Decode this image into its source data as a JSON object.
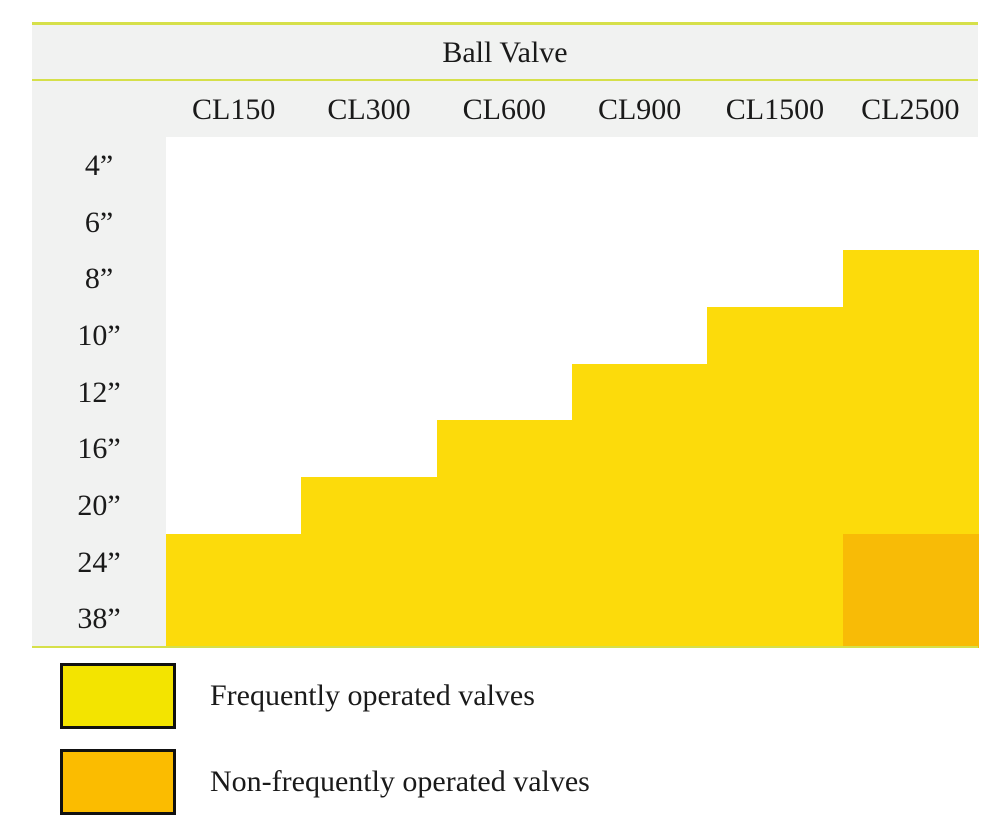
{
  "chart_data": {
    "type": "table",
    "title": "Ball Valve",
    "columns": [
      "CL150",
      "CL300",
      "CL600",
      "CL900",
      "CL1500",
      "CL2500"
    ],
    "rows": [
      "4”",
      "6”",
      "8”",
      "10”",
      "12”",
      "16”",
      "20”",
      "24”",
      "38”"
    ],
    "cells": [
      [
        "none",
        "none",
        "none",
        "none",
        "none",
        "none"
      ],
      [
        "none",
        "none",
        "none",
        "none",
        "none",
        "none"
      ],
      [
        "none",
        "none",
        "none",
        "none",
        "none",
        "frequent"
      ],
      [
        "none",
        "none",
        "none",
        "none",
        "frequent",
        "frequent"
      ],
      [
        "none",
        "none",
        "none",
        "frequent",
        "frequent",
        "frequent"
      ],
      [
        "none",
        "none",
        "frequent",
        "frequent",
        "frequent",
        "frequent"
      ],
      [
        "none",
        "frequent",
        "frequent",
        "frequent",
        "frequent",
        "frequent"
      ],
      [
        "frequent",
        "frequent",
        "frequent",
        "frequent",
        "frequent",
        "non-frequent"
      ],
      [
        "frequent",
        "frequent",
        "frequent",
        "frequent",
        "frequent",
        "non-frequent"
      ]
    ],
    "legend": [
      {
        "key": "frequent",
        "label": "Frequently operated valves"
      },
      {
        "key": "non-frequent",
        "label": "Non-frequently operated valves"
      }
    ]
  },
  "colors": {
    "frequent": "#fcdb0b",
    "non-frequent": "#f8bb06",
    "legend_frequent": "#f3e400",
    "legend_non_frequent": "#fbbc00",
    "accent_rule": "#d6e04a",
    "header_bg": "#f1f2f1"
  }
}
